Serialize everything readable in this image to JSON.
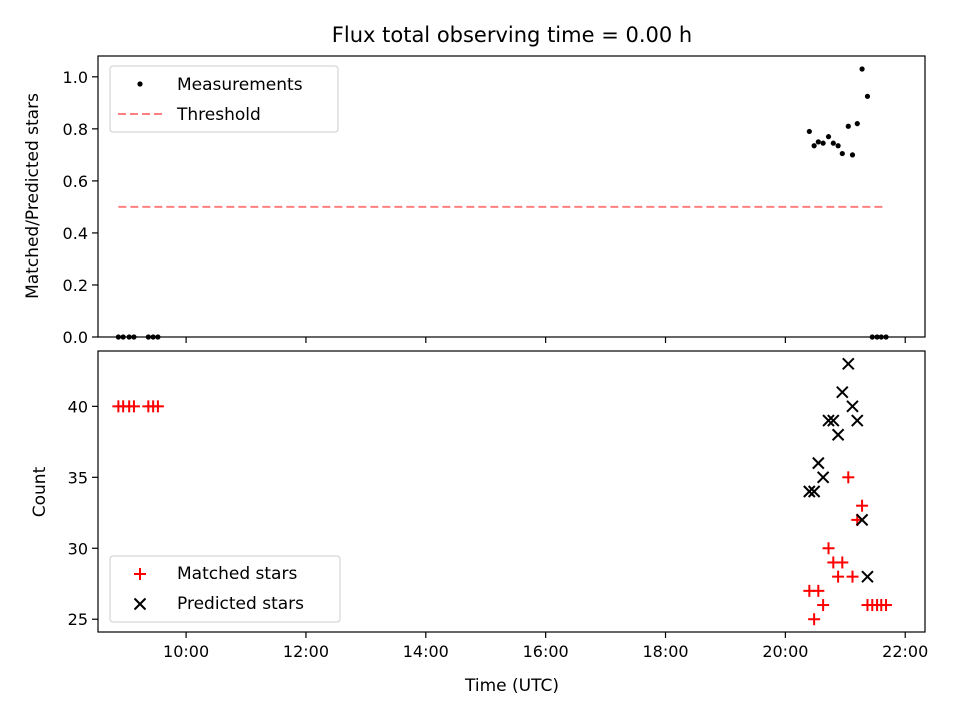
{
  "figure_title": "Flux total observing time = 0.00 h",
  "xlabel": "Time (UTC)",
  "colors": {
    "threshold": "#ff8080",
    "matched": "#ff0000",
    "predicted": "#000000",
    "measurement": "#000000"
  },
  "chart_data": [
    {
      "type": "scatter",
      "ylabel": "Matched/Predicted stars",
      "xlim": [
        8.53,
        22.33
      ],
      "ylim": [
        0,
        1.08
      ],
      "yticks": [
        0.0,
        0.2,
        0.4,
        0.6,
        0.8,
        1.0
      ],
      "ytick_labels": [
        "0.0",
        "0.2",
        "0.4",
        "0.6",
        "0.8",
        "1.0"
      ],
      "legend": {
        "placement": "upper-left",
        "entries": [
          "Measurements",
          "Threshold"
        ]
      },
      "series": [
        {
          "name": "Measurements",
          "x": [
            8.87,
            8.95,
            9.05,
            9.13,
            9.37,
            9.45,
            9.53,
            20.4,
            20.48,
            20.55,
            20.63,
            20.72,
            20.8,
            20.88,
            20.95,
            21.05,
            21.12,
            21.2,
            21.28,
            21.37,
            21.45,
            21.53,
            21.6,
            21.68
          ],
          "y": [
            0,
            0,
            0,
            0,
            0,
            0,
            0,
            0.79,
            0.735,
            0.75,
            0.745,
            0.77,
            0.745,
            0.735,
            0.705,
            0.81,
            0.7,
            0.82,
            1.03,
            0.925,
            0,
            0,
            0,
            0
          ]
        },
        {
          "name": "Threshold",
          "x": [
            8.87,
            21.68
          ],
          "y": [
            0.5,
            0.5
          ]
        }
      ]
    },
    {
      "type": "scatter",
      "ylabel": "Count",
      "xlabel": "Time (UTC)",
      "xlim": [
        8.53,
        22.33
      ],
      "ylim": [
        24.1,
        43.9
      ],
      "yticks": [
        25,
        30,
        35,
        40
      ],
      "ytick_labels": [
        "25",
        "30",
        "35",
        "40"
      ],
      "xticks": [
        10,
        12,
        14,
        16,
        18,
        20,
        22
      ],
      "xtick_labels": [
        "10:00",
        "12:00",
        "14:00",
        "16:00",
        "18:00",
        "20:00",
        "22:00"
      ],
      "legend": {
        "placement": "lower-left",
        "entries": [
          "Matched stars",
          "Predicted stars"
        ]
      },
      "series": [
        {
          "name": "Matched stars",
          "x": [
            8.87,
            8.95,
            9.05,
            9.13,
            9.37,
            9.45,
            9.53,
            20.4,
            20.48,
            20.55,
            20.63,
            20.72,
            20.8,
            20.88,
            20.95,
            21.05,
            21.12,
            21.2,
            21.28,
            21.37,
            21.45,
            21.53,
            21.6,
            21.68
          ],
          "y": [
            40,
            40,
            40,
            40,
            40,
            40,
            40,
            27,
            25,
            27,
            26,
            30,
            29,
            28,
            29,
            35,
            28,
            32,
            33,
            26,
            26,
            26,
            26,
            26
          ]
        },
        {
          "name": "Predicted stars",
          "x": [
            20.4,
            20.48,
            20.55,
            20.63,
            20.72,
            20.8,
            20.88,
            20.95,
            21.05,
            21.12,
            21.2,
            21.28,
            21.37
          ],
          "y": [
            34,
            34,
            36,
            35,
            39,
            39,
            38,
            41,
            43,
            40,
            39,
            32,
            28
          ]
        }
      ]
    }
  ]
}
